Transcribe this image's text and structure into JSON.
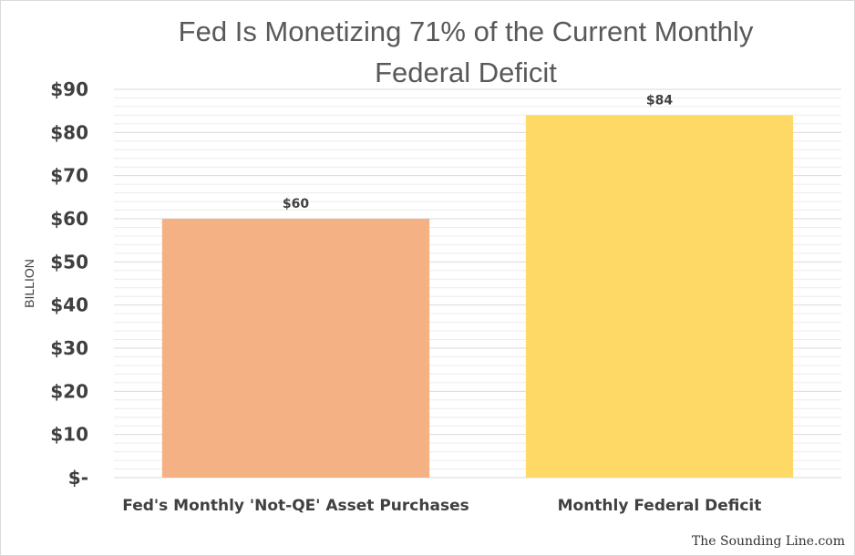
{
  "chart_data": {
    "type": "bar",
    "title": "Fed Is Monetizing 71% of the Current Monthly Federal Deficit",
    "title_lines": [
      "Fed Is Monetizing 71% of the Current Monthly",
      "Federal Deficit"
    ],
    "categories": [
      "Fed's Monthly 'Not-QE' Asset Purchases",
      "Monthly Federal Deficit"
    ],
    "values": [
      60,
      84
    ],
    "data_labels": [
      "$60",
      "$84"
    ],
    "bar_colors": [
      "#F4B183",
      "#FFD966"
    ],
    "ylabel": "BILLION",
    "xlabel": "",
    "ylim": [
      0,
      90
    ],
    "yticks": [
      {
        "value": 0,
        "label": "$-"
      },
      {
        "value": 10,
        "label": "$10"
      },
      {
        "value": 20,
        "label": "$20"
      },
      {
        "value": 30,
        "label": "$30"
      },
      {
        "value": 40,
        "label": "$40"
      },
      {
        "value": 50,
        "label": "$50"
      },
      {
        "value": 60,
        "label": "$60"
      },
      {
        "value": 70,
        "label": "$70"
      },
      {
        "value": 80,
        "label": "$80"
      },
      {
        "value": 90,
        "label": "$90"
      }
    ],
    "minor_grid_step": 2,
    "grid": true,
    "legend": "none"
  },
  "watermark": "The Sounding Line.com",
  "colors": {
    "title": "#595959",
    "text": "#404040",
    "grid": "#d9d9d9",
    "minor_grid": "#ececec"
  }
}
